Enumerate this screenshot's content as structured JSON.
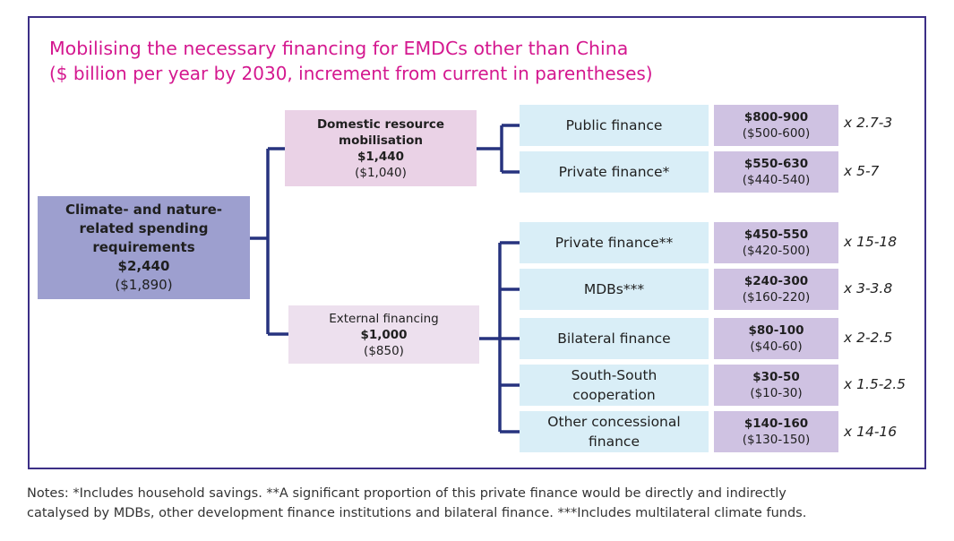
{
  "title": "Mobilising the necessary financing for EMDCs other than China",
  "subtitle": "($ billion per year by 2030, increment from current in parentheses)",
  "root": {
    "lines": [
      "Climate- and nature-",
      "related spending",
      "requirements"
    ],
    "value": "$2,440",
    "increment": "($1,890)"
  },
  "domestic": {
    "lines": [
      "Domestic resource",
      "mobilisation"
    ],
    "value": "$1,440",
    "increment": "($1,040)"
  },
  "external": {
    "lines": [
      "External financing"
    ],
    "value": "$1,000",
    "increment": "($850)"
  },
  "domestic_sources": [
    {
      "label_lines": [
        "Public finance"
      ],
      "value": "$800-900",
      "increment": "($500-600)",
      "multiplier": "x 2.7-3"
    },
    {
      "label_lines": [
        "Private finance*"
      ],
      "value": "$550-630",
      "increment": "($440-540)",
      "multiplier": "x 5-7"
    }
  ],
  "external_sources": [
    {
      "label_lines": [
        "Private finance**"
      ],
      "value": "$450-550",
      "increment": "($420-500)",
      "multiplier": "x 15-18"
    },
    {
      "label_lines": [
        "MDBs***"
      ],
      "value": "$240-300",
      "increment": "($160-220)",
      "multiplier": "x 3-3.8"
    },
    {
      "label_lines": [
        "Bilateral finance"
      ],
      "value": "$80-100",
      "increment": "($40-60)",
      "multiplier": "x 2-2.5"
    },
    {
      "label_lines": [
        "South-South",
        "cooperation"
      ],
      "value": "$30-50",
      "increment": "($10-30)",
      "multiplier": "x 1.5-2.5"
    },
    {
      "label_lines": [
        "Other concessional",
        "finance"
      ],
      "value": "$140-160",
      "increment": "($130-150)",
      "multiplier": "x 14-16"
    }
  ],
  "notes": [
    "Notes: *Includes household savings. **A significant proportion of this private finance would be directly and indirectly",
    "catalysed by MDBs, other development finance institutions and bilateral finance. ***Includes multilateral climate funds."
  ],
  "colors": {
    "title": "#d4188f",
    "root_box": "#9d9fcf",
    "domestic_box": "#ead2e6",
    "external_box": "#ede0ee",
    "source_box": "#d9eef7",
    "value_box": "#cfc2e2",
    "connector": "#27337f",
    "frame": "#3c2f86"
  }
}
